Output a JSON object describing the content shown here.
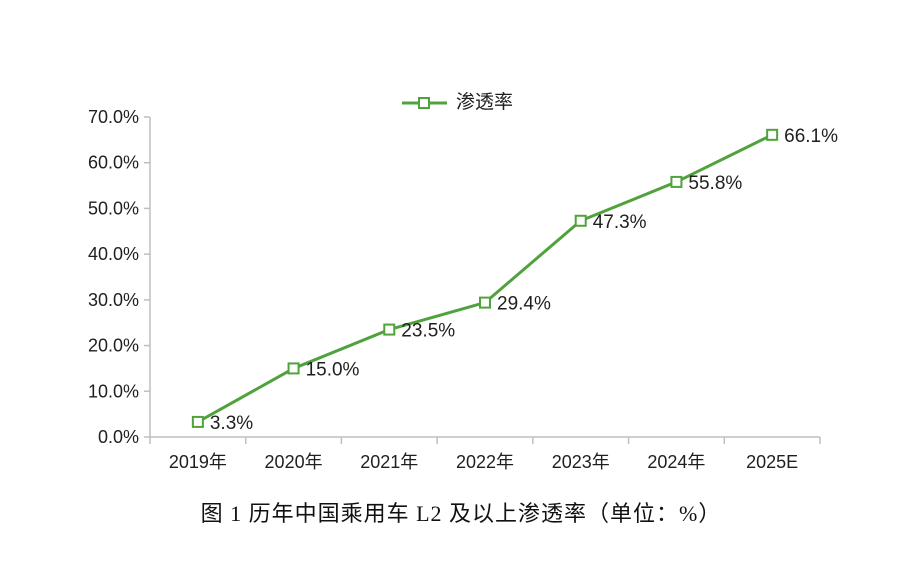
{
  "figure": {
    "caption": "图 1 历年中国乘用车 L2 及以上渗透率（单位：%）"
  },
  "legend": {
    "label": "渗透率"
  },
  "colors": {
    "series_green": "#4FA23C",
    "axis_gray": "#BFBFBF",
    "text_dark": "#1F1F1F",
    "marker_fill": "#FFFFFF"
  },
  "chart_data": {
    "type": "line",
    "title": "",
    "xlabel": "",
    "ylabel": "",
    "categories": [
      "2019年",
      "2020年",
      "2021年",
      "2022年",
      "2023年",
      "2024年",
      "2025E"
    ],
    "series": [
      {
        "name": "渗透率",
        "values": [
          3.3,
          15.0,
          23.5,
          29.4,
          47.3,
          55.8,
          66.1
        ],
        "point_labels": [
          "3.3%",
          "15.0%",
          "23.5%",
          "29.4%",
          "47.3%",
          "55.8%",
          "66.1%"
        ],
        "color": "#4FA23C",
        "marker": "open-square"
      }
    ],
    "ylim": [
      0,
      70
    ],
    "y_tick_step": 10,
    "y_tick_labels": [
      "0.0%",
      "10.0%",
      "20.0%",
      "30.0%",
      "40.0%",
      "50.0%",
      "60.0%",
      "70.0%"
    ],
    "grid": false,
    "legend_position": "top-center"
  }
}
